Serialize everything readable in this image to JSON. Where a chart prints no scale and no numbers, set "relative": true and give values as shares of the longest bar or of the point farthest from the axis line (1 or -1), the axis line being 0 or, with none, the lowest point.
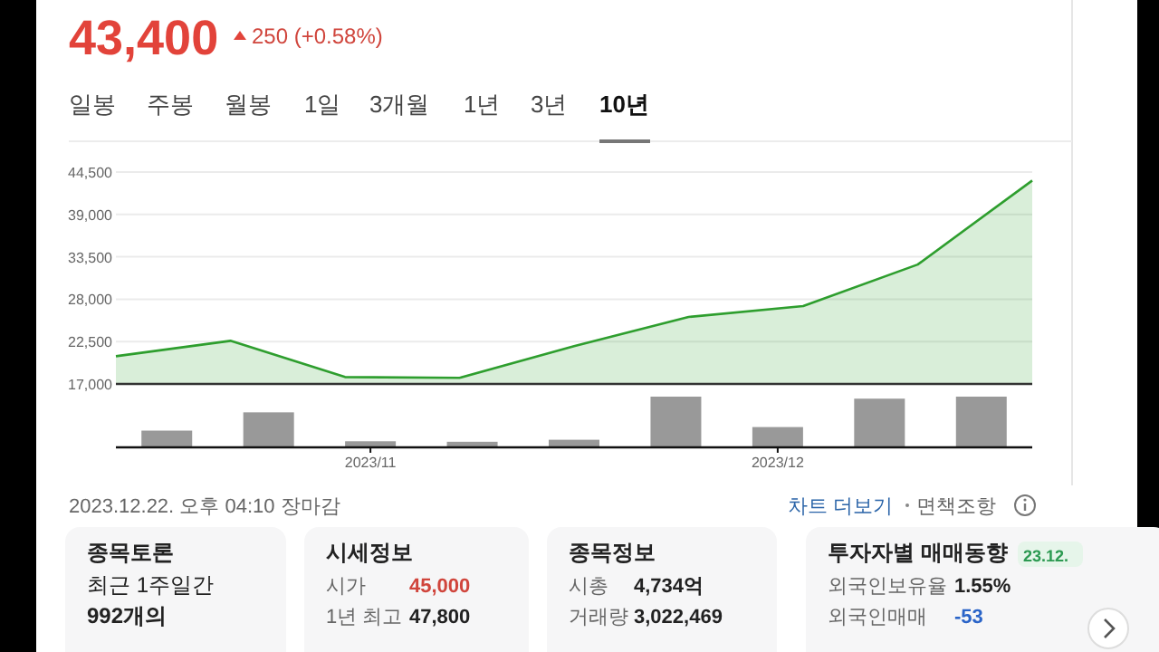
{
  "chart_data": [
    {
      "type": "area",
      "title": "43,400",
      "subtitle": "250 (+0.58%)",
      "categories": [
        null,
        null,
        null,
        null,
        null,
        null,
        null,
        null,
        null
      ],
      "values": [
        20600,
        22600,
        17900,
        17800,
        21900,
        25700,
        27100,
        32500,
        43400
      ],
      "color": "#2e9e2e",
      "ylim": [
        17000,
        44500
      ],
      "yticks": [
        {
          "value": 17000,
          "label": "17,000"
        },
        {
          "value": 22500,
          "label": "22,500"
        },
        {
          "value": 28000,
          "label": "28,000"
        },
        {
          "value": 33500,
          "label": "33,500"
        },
        {
          "value": 39000,
          "label": "39,000"
        },
        {
          "value": 44500,
          "label": "44,500"
        }
      ],
      "grid": "y"
    },
    {
      "type": "bar",
      "relative": true,
      "categories": [
        null,
        null,
        "2023/11",
        null,
        null,
        null,
        "2023/12",
        null,
        null
      ],
      "values": [
        0.33,
        0.69,
        0.12,
        0.11,
        0.15,
        1,
        0.4,
        0.96,
        1
      ],
      "color": "#999999"
    },
    {
      "type": "other",
      "annotations": [
        "일봉",
        "주봉",
        "월봉",
        "1일",
        "3개월",
        "1년",
        "3년",
        "10년"
      ]
    },
    {
      "type": "other",
      "annotations": [
        "2023.12.22. 오후 04:10 장마감",
        "차트 더보기",
        "면책조항"
      ]
    },
    {
      "type": "other",
      "title": "종목토론",
      "annotations": [
        "최근 1주일간",
        "992개의"
      ]
    },
    {
      "type": "other",
      "title": "시세정보",
      "annotations": [
        "시가",
        "45,000",
        "1년 최고",
        "47,800"
      ]
    },
    {
      "type": "other",
      "title": "종목정보",
      "annotations": [
        "시총",
        "4,734억",
        "거래량",
        "3,022,469"
      ]
    },
    {
      "type": "other",
      "title": "투자자별 매매동향",
      "subtitle": "23.12.",
      "annotations": [
        "외국인보유율",
        "1.55%",
        "외국인매매",
        "-53"
      ]
    }
  ]
}
